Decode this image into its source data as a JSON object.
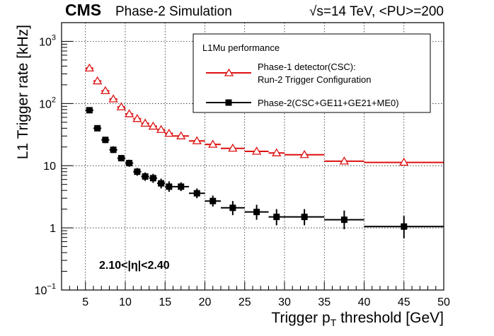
{
  "header": {
    "experiment": "CMS",
    "subtitle": "Phase-2 Simulation",
    "conditions": "√s=14 TeV, <PU>=200"
  },
  "chart_data": {
    "type": "scatter",
    "title": "L1Mu performance",
    "xlabel": "Trigger p_T threshold [GeV]",
    "xlabel_parts": {
      "pre": "Trigger p",
      "sub": "T",
      "post": " threshold [GeV]"
    },
    "ylabel": "L1 Trigger rate [kHz]",
    "xlim": [
      2,
      50
    ],
    "ylim": [
      0.1,
      2000
    ],
    "yscale": "log",
    "grid": true,
    "xticks": [
      5,
      10,
      15,
      20,
      25,
      30,
      35,
      40,
      45,
      50
    ],
    "yticks": [
      {
        "value": 0.1,
        "base": "10",
        "sup": "−1"
      },
      {
        "value": 1,
        "base": "1",
        "sup": ""
      },
      {
        "value": 10,
        "base": "10",
        "sup": ""
      },
      {
        "value": 100,
        "base": "10",
        "sup": "2"
      },
      {
        "value": 1000,
        "base": "10",
        "sup": "3"
      }
    ],
    "annotation": "2.10<|η|<2.40",
    "legend": {
      "position": "top-right",
      "title": "L1Mu performance"
    },
    "series": [
      {
        "name": "Phase-1 detector(CSC): Run-2 Trigger Configuration",
        "legend_lines": [
          "Phase-1 detector(CSC):",
          "Run-2 Trigger Configuration"
        ],
        "color": "#dd1111",
        "marker": "open-triangle",
        "errors": false,
        "points": [
          {
            "x": 5.5,
            "xlo": 5,
            "xhi": 6,
            "y": 370
          },
          {
            "x": 6.5,
            "xlo": 6,
            "xhi": 7,
            "y": 230
          },
          {
            "x": 7.5,
            "xlo": 7,
            "xhi": 8,
            "y": 160
          },
          {
            "x": 8.5,
            "xlo": 8,
            "xhi": 9,
            "y": 118
          },
          {
            "x": 9.5,
            "xlo": 9,
            "xhi": 10,
            "y": 88
          },
          {
            "x": 10.5,
            "xlo": 10,
            "xhi": 11,
            "y": 68
          },
          {
            "x": 11.5,
            "xlo": 11,
            "xhi": 12,
            "y": 57
          },
          {
            "x": 12.5,
            "xlo": 12,
            "xhi": 13,
            "y": 48
          },
          {
            "x": 13.5,
            "xlo": 13,
            "xhi": 14,
            "y": 43
          },
          {
            "x": 14.5,
            "xlo": 14,
            "xhi": 15,
            "y": 38
          },
          {
            "x": 15.5,
            "xlo": 15,
            "xhi": 16,
            "y": 33
          },
          {
            "x": 17,
            "xlo": 16,
            "xhi": 18,
            "y": 30
          },
          {
            "x": 19,
            "xlo": 18,
            "xhi": 20,
            "y": 25
          },
          {
            "x": 21,
            "xlo": 20,
            "xhi": 22,
            "y": 22
          },
          {
            "x": 23.5,
            "xlo": 22,
            "xhi": 25,
            "y": 19
          },
          {
            "x": 26.5,
            "xlo": 25,
            "xhi": 28,
            "y": 17
          },
          {
            "x": 29,
            "xlo": 28,
            "xhi": 30,
            "y": 16
          },
          {
            "x": 32.5,
            "xlo": 30,
            "xhi": 35,
            "y": 15
          },
          {
            "x": 37.5,
            "xlo": 35,
            "xhi": 40,
            "y": 11.8
          },
          {
            "x": 45,
            "xlo": 40,
            "xhi": 50,
            "y": 11.3
          }
        ]
      },
      {
        "name": "Phase-2(CSC+GE11+GE21+ME0)",
        "legend_lines": [
          "Phase-2(CSC+GE11+GE21+ME0)"
        ],
        "color": "#000000",
        "marker": "filled-square",
        "errors": true,
        "points": [
          {
            "x": 5.5,
            "xlo": 5,
            "xhi": 6,
            "y": 78,
            "ylo": 70,
            "yhi": 86
          },
          {
            "x": 6.5,
            "xlo": 6,
            "xhi": 7,
            "y": 40,
            "ylo": 36,
            "yhi": 44
          },
          {
            "x": 7.5,
            "xlo": 7,
            "xhi": 8,
            "y": 26,
            "ylo": 23,
            "yhi": 29
          },
          {
            "x": 8.5,
            "xlo": 8,
            "xhi": 9,
            "y": 18,
            "ylo": 16,
            "yhi": 20.5
          },
          {
            "x": 9.5,
            "xlo": 9,
            "xhi": 10,
            "y": 13.2,
            "ylo": 11.8,
            "yhi": 14.8
          },
          {
            "x": 10.5,
            "xlo": 10,
            "xhi": 11,
            "y": 11,
            "ylo": 9.6,
            "yhi": 12.5
          },
          {
            "x": 11.5,
            "xlo": 11,
            "xhi": 12,
            "y": 8,
            "ylo": 6.9,
            "yhi": 9.2
          },
          {
            "x": 12.5,
            "xlo": 12,
            "xhi": 13,
            "y": 6.7,
            "ylo": 5.7,
            "yhi": 7.8
          },
          {
            "x": 13.5,
            "xlo": 13,
            "xhi": 14,
            "y": 6.3,
            "ylo": 5.3,
            "yhi": 7.4
          },
          {
            "x": 14.5,
            "xlo": 14,
            "xhi": 15,
            "y": 5.2,
            "ylo": 4.3,
            "yhi": 6.2
          },
          {
            "x": 15.5,
            "xlo": 15,
            "xhi": 16,
            "y": 4.6,
            "ylo": 3.8,
            "yhi": 5.6
          },
          {
            "x": 17,
            "xlo": 16,
            "xhi": 18,
            "y": 4.6,
            "ylo": 3.9,
            "yhi": 5.4
          },
          {
            "x": 19,
            "xlo": 18,
            "xhi": 20,
            "y": 3.6,
            "ylo": 3.0,
            "yhi": 4.3
          },
          {
            "x": 21,
            "xlo": 20,
            "xhi": 22,
            "y": 2.7,
            "ylo": 2.2,
            "yhi": 3.3
          },
          {
            "x": 23.5,
            "xlo": 22,
            "xhi": 25,
            "y": 2.1,
            "ylo": 1.6,
            "yhi": 2.7
          },
          {
            "x": 26.5,
            "xlo": 25,
            "xhi": 28,
            "y": 1.8,
            "ylo": 1.35,
            "yhi": 2.35
          },
          {
            "x": 29,
            "xlo": 28,
            "xhi": 30,
            "y": 1.5,
            "ylo": 1.1,
            "yhi": 2.0
          },
          {
            "x": 32.5,
            "xlo": 30,
            "xhi": 35,
            "y": 1.5,
            "ylo": 1.1,
            "yhi": 2.0
          },
          {
            "x": 37.5,
            "xlo": 35,
            "xhi": 40,
            "y": 1.35,
            "ylo": 0.95,
            "yhi": 1.9
          },
          {
            "x": 45,
            "xlo": 40,
            "xhi": 50,
            "y": 1.05,
            "ylo": 0.68,
            "yhi": 1.55
          }
        ]
      }
    ]
  }
}
